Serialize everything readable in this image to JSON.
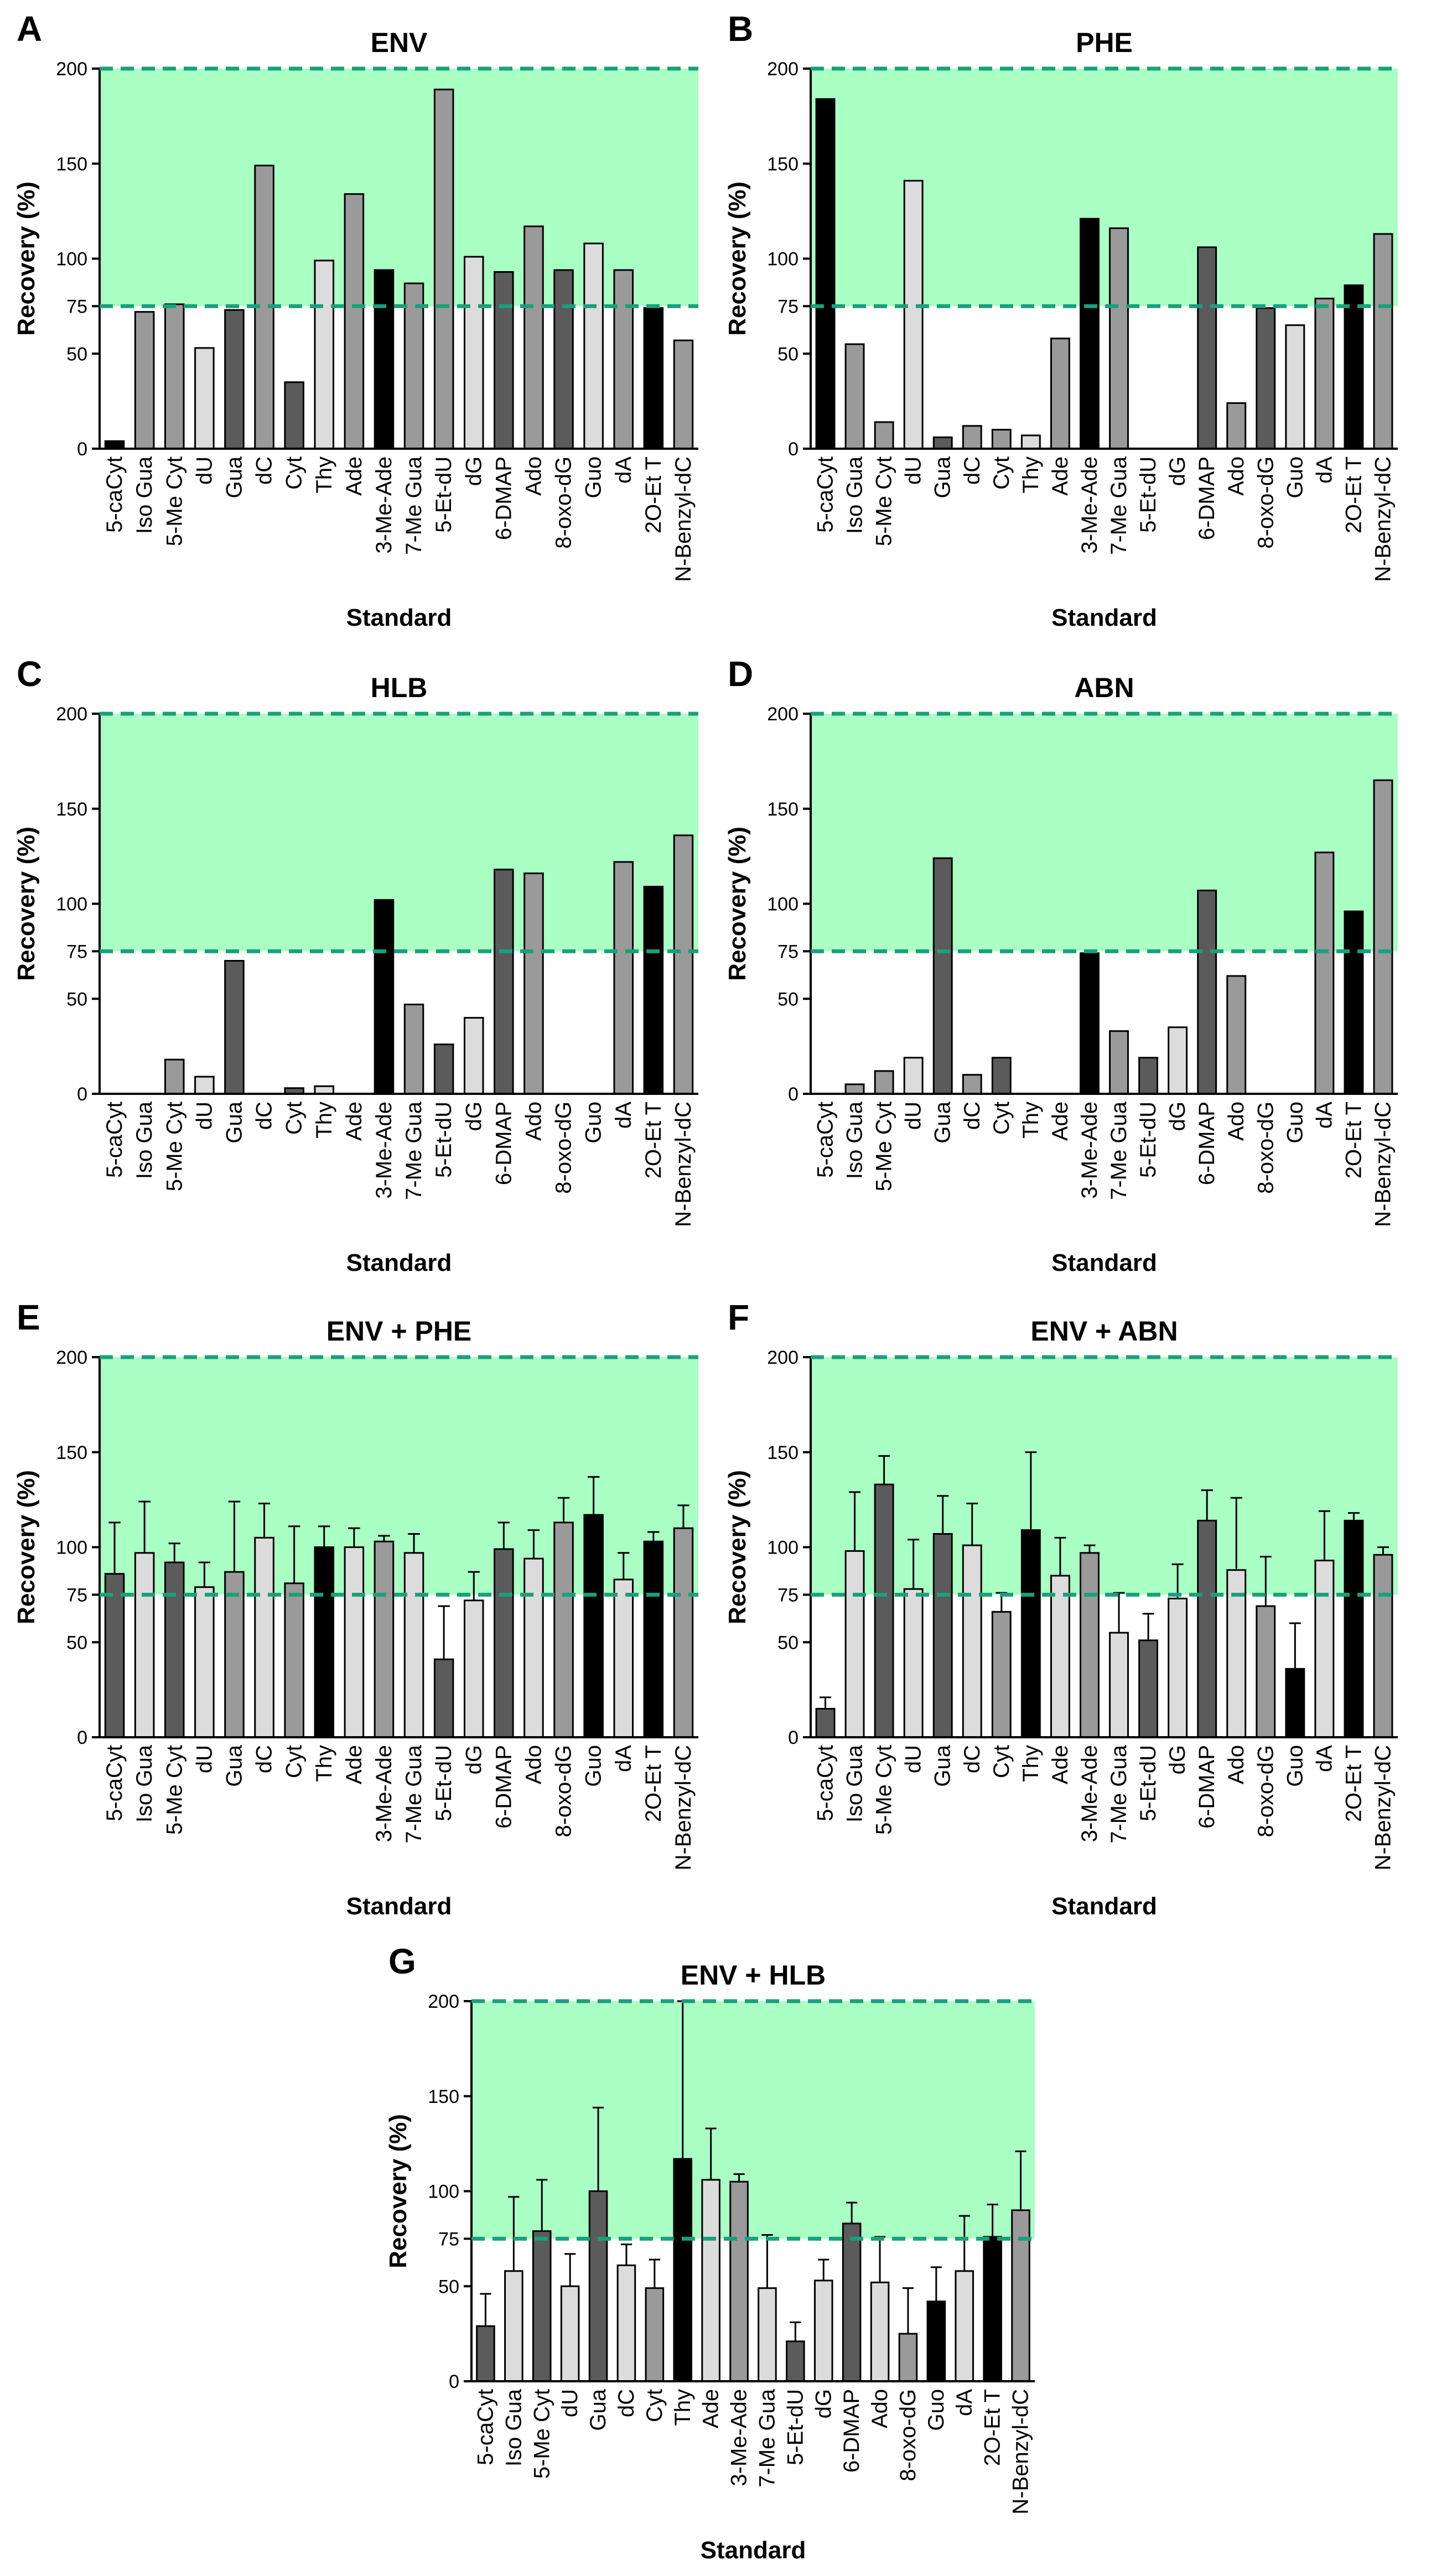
{
  "colors": {
    "band": "#aaffc4",
    "threshold": "#1aa07a",
    "black": "#000000",
    "dark": "#5b5b5b",
    "mid": "#9a9a9a",
    "light": "#dcdcdc"
  },
  "chart_data": [
    {
      "id": "A",
      "type": "bar",
      "title": "ENV",
      "xlabel": "Standard",
      "ylabel": "Recovery (%)",
      "ylim": [
        0,
        200
      ],
      "yticks": [
        "0",
        "50",
        "75",
        "100",
        "150",
        "200"
      ],
      "thresholds": [
        75,
        200
      ],
      "categories": [
        "5-caCyt",
        "Iso Gua",
        "5-Me Cyt",
        "dU",
        "Gua",
        "dC",
        "Cyt",
        "Thy",
        "Ade",
        "3-Me-Ade",
        "7-Me Gua",
        "5-Et-dU",
        "dG",
        "6-DMAP",
        "Ado",
        "8-oxo-dG",
        "Guo",
        "dA",
        "2O-Et T",
        "N-Benzyl-dC"
      ],
      "values": [
        4,
        72,
        76,
        53,
        73,
        149,
        35,
        99,
        134,
        94,
        87,
        189,
        101,
        93,
        117,
        94,
        108,
        94,
        74,
        57
      ],
      "shades": [
        "black",
        "mid",
        "mid",
        "light",
        "dark",
        "mid",
        "dark",
        "light",
        "mid",
        "black",
        "mid",
        "mid",
        "light",
        "dark",
        "mid",
        "dark",
        "light",
        "mid",
        "black",
        "mid"
      ]
    },
    {
      "id": "B",
      "type": "bar",
      "title": "PHE",
      "xlabel": "Standard",
      "ylabel": "Recovery (%)",
      "ylim": [
        0,
        200
      ],
      "yticks": [
        "0",
        "50",
        "75",
        "100",
        "150",
        "200"
      ],
      "thresholds": [
        75,
        200
      ],
      "categories": [
        "5-caCyt",
        "Iso Gua",
        "5-Me Cyt",
        "dU",
        "Gua",
        "dC",
        "Cyt",
        "Thy",
        "Ade",
        "3-Me-Ade",
        "7-Me Gua",
        "5-Et-dU",
        "dG",
        "6-DMAP",
        "Ado",
        "8-oxo-dG",
        "Guo",
        "dA",
        "2O-Et T",
        "N-Benzyl-dC"
      ],
      "values": [
        184,
        55,
        14,
        141,
        6,
        12,
        10,
        7,
        58,
        121,
        116,
        0,
        0,
        106,
        24,
        74,
        65,
        79,
        86,
        113
      ],
      "shades": [
        "black",
        "mid",
        "mid",
        "light",
        "dark",
        "mid",
        "mid",
        "light",
        "mid",
        "black",
        "mid",
        "mid",
        "light",
        "dark",
        "mid",
        "dark",
        "light",
        "mid",
        "black",
        "mid"
      ]
    },
    {
      "id": "C",
      "type": "bar",
      "title": "HLB",
      "xlabel": "Standard",
      "ylabel": "Recovery (%)",
      "ylim": [
        0,
        200
      ],
      "yticks": [
        "0",
        "50",
        "75",
        "100",
        "150",
        "200"
      ],
      "thresholds": [
        75,
        200
      ],
      "categories": [
        "5-caCyt",
        "Iso Gua",
        "5-Me Cyt",
        "dU",
        "Gua",
        "dC",
        "Cyt",
        "Thy",
        "Ade",
        "3-Me-Ade",
        "7-Me Gua",
        "5-Et-dU",
        "dG",
        "6-DMAP",
        "Ado",
        "8-oxo-dG",
        "Guo",
        "dA",
        "2O-Et T",
        "N-Benzyl-dC"
      ],
      "values": [
        0,
        0,
        18,
        9,
        70,
        0,
        3,
        4,
        0,
        102,
        47,
        26,
        40,
        118,
        116,
        0,
        0,
        122,
        109,
        136
      ],
      "shades": [
        "black",
        "mid",
        "mid",
        "light",
        "dark",
        "mid",
        "dark",
        "light",
        "mid",
        "black",
        "mid",
        "dark",
        "light",
        "dark",
        "mid",
        "dark",
        "light",
        "mid",
        "black",
        "mid"
      ]
    },
    {
      "id": "D",
      "type": "bar",
      "title": "ABN",
      "xlabel": "Standard",
      "ylabel": "Recovery (%)",
      "ylim": [
        0,
        200
      ],
      "yticks": [
        "0",
        "50",
        "75",
        "100",
        "150",
        "200"
      ],
      "thresholds": [
        75,
        200
      ],
      "categories": [
        "5-caCyt",
        "Iso Gua",
        "5-Me Cyt",
        "dU",
        "Gua",
        "dC",
        "Cyt",
        "Thy",
        "Ade",
        "3-Me-Ade",
        "7-Me Gua",
        "5-Et-dU",
        "dG",
        "6-DMAP",
        "Ado",
        "8-oxo-dG",
        "Guo",
        "dA",
        "2O-Et T",
        "N-Benzyl-dC"
      ],
      "values": [
        0,
        5,
        12,
        19,
        124,
        10,
        19,
        0,
        0,
        74,
        33,
        19,
        35,
        107,
        62,
        0,
        0,
        127,
        96,
        165
      ],
      "shades": [
        "black",
        "mid",
        "mid",
        "light",
        "dark",
        "mid",
        "dark",
        "light",
        "mid",
        "black",
        "mid",
        "dark",
        "light",
        "dark",
        "mid",
        "dark",
        "light",
        "mid",
        "black",
        "mid"
      ]
    },
    {
      "id": "E",
      "type": "bar",
      "title": "ENV + PHE",
      "xlabel": "Standard",
      "ylabel": "Recovery (%)",
      "ylim": [
        0,
        200
      ],
      "yticks": [
        "0",
        "50",
        "75",
        "100",
        "150",
        "200"
      ],
      "thresholds": [
        75,
        200
      ],
      "categories": [
        "5-caCyt",
        "Iso Gua",
        "5-Me Cyt",
        "dU",
        "Gua",
        "dC",
        "Cyt",
        "Thy",
        "Ade",
        "3-Me-Ade",
        "7-Me Gua",
        "5-Et-dU",
        "dG",
        "6-DMAP",
        "Ado",
        "8-oxo-dG",
        "Guo",
        "dA",
        "2O-Et T",
        "N-Benzyl-dC"
      ],
      "values": [
        86,
        97,
        92,
        79,
        87,
        105,
        81,
        100,
        100,
        103,
        97,
        41,
        72,
        99,
        94,
        113,
        117,
        83,
        103,
        110
      ],
      "errors": [
        27,
        27,
        10,
        13,
        37,
        18,
        30,
        11,
        10,
        3,
        10,
        28,
        15,
        14,
        15,
        13,
        20,
        14,
        5,
        12
      ],
      "shades": [
        "dark",
        "light",
        "dark",
        "light",
        "mid",
        "light",
        "mid",
        "black",
        "light",
        "mid",
        "light",
        "dark",
        "light",
        "dark",
        "light",
        "mid",
        "black",
        "light",
        "black",
        "mid"
      ]
    },
    {
      "id": "F",
      "type": "bar",
      "title": "ENV + ABN",
      "xlabel": "Standard",
      "ylabel": "Recovery (%)",
      "ylim": [
        0,
        200
      ],
      "yticks": [
        "0",
        "50",
        "75",
        "100",
        "150",
        "200"
      ],
      "thresholds": [
        75,
        200
      ],
      "categories": [
        "5-caCyt",
        "Iso Gua",
        "5-Me Cyt",
        "dU",
        "Gua",
        "dC",
        "Cyt",
        "Thy",
        "Ade",
        "3-Me-Ade",
        "7-Me Gua",
        "5-Et-dU",
        "dG",
        "6-DMAP",
        "Ado",
        "8-oxo-dG",
        "Guo",
        "dA",
        "2O-Et T",
        "N-Benzyl-dC"
      ],
      "values": [
        15,
        98,
        133,
        78,
        107,
        101,
        66,
        109,
        85,
        97,
        55,
        51,
        73,
        114,
        88,
        69,
        36,
        93,
        114,
        96
      ],
      "errors": [
        6,
        31,
        15,
        26,
        20,
        22,
        10,
        41,
        20,
        4,
        21,
        14,
        18,
        16,
        38,
        26,
        24,
        26,
        4,
        4
      ],
      "shades": [
        "dark",
        "light",
        "dark",
        "light",
        "dark",
        "light",
        "mid",
        "black",
        "light",
        "mid",
        "light",
        "dark",
        "light",
        "dark",
        "light",
        "mid",
        "black",
        "light",
        "black",
        "mid"
      ]
    },
    {
      "id": "G",
      "type": "bar",
      "title": "ENV + HLB",
      "xlabel": "Standard",
      "ylabel": "Recovery (%)",
      "ylim": [
        0,
        200
      ],
      "yticks": [
        "0",
        "50",
        "75",
        "100",
        "150",
        "200"
      ],
      "thresholds": [
        75,
        200
      ],
      "categories": [
        "5-caCyt",
        "Iso Gua",
        "5-Me Cyt",
        "dU",
        "Gua",
        "dC",
        "Cyt",
        "Thy",
        "Ade",
        "3-Me-Ade",
        "7-Me Gua",
        "5-Et-dU",
        "dG",
        "6-DMAP",
        "Ado",
        "8-oxo-dG",
        "Guo",
        "dA",
        "2O-Et T",
        "N-Benzyl-dC"
      ],
      "values": [
        29,
        58,
        79,
        50,
        100,
        61,
        49,
        117,
        106,
        105,
        49,
        21,
        53,
        83,
        52,
        25,
        42,
        58,
        76,
        90
      ],
      "errors": [
        17,
        39,
        27,
        17,
        44,
        11,
        15,
        83,
        27,
        4,
        28,
        10,
        11,
        11,
        24,
        24,
        18,
        29,
        17,
        31
      ],
      "shades": [
        "dark",
        "light",
        "dark",
        "light",
        "dark",
        "light",
        "mid",
        "black",
        "light",
        "mid",
        "light",
        "dark",
        "light",
        "dark",
        "light",
        "mid",
        "black",
        "light",
        "black",
        "mid"
      ]
    }
  ]
}
